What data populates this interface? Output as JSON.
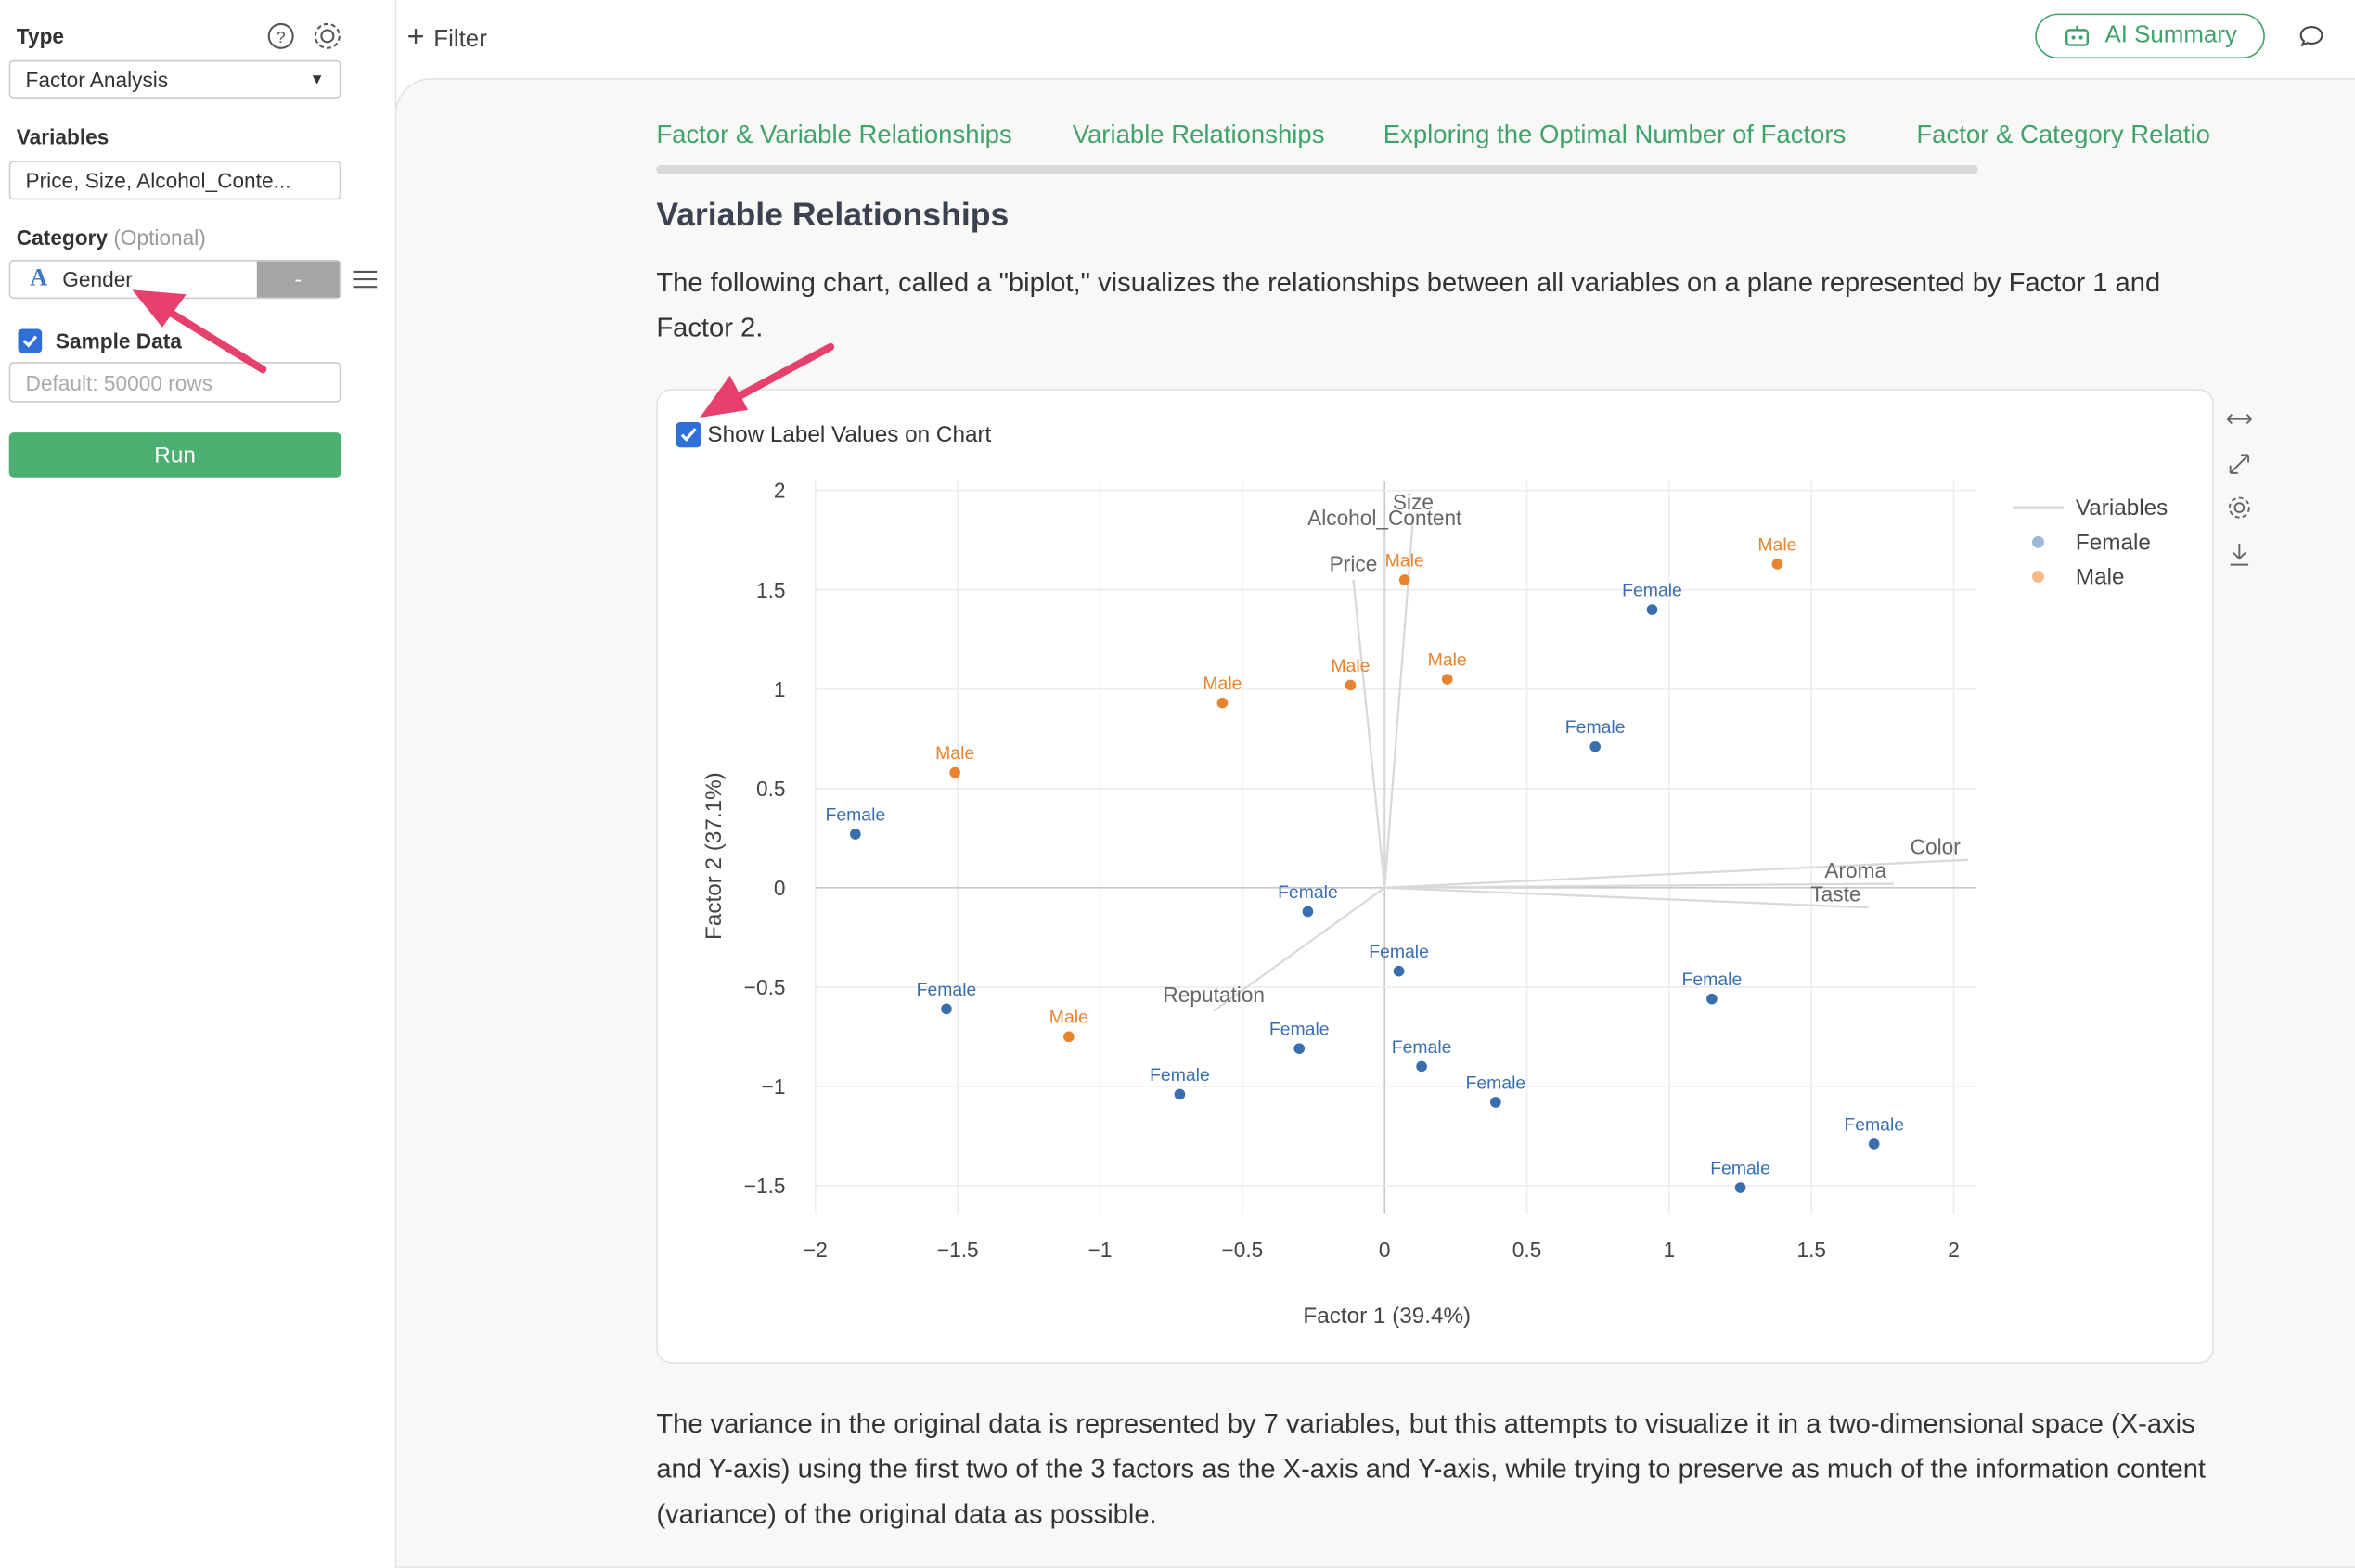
{
  "sidebar": {
    "type_label": "Type",
    "type_value": "Factor Analysis",
    "variables_label": "Variables",
    "variables_value": "Price, Size, Alcohol_Conte...",
    "category_label": "Category",
    "category_optional": "(Optional)",
    "category_value": "Gender",
    "category_button": "-",
    "sample_label": "Sample Data",
    "sample_placeholder": "Default: 50000 rows",
    "run": "Run"
  },
  "toolbar": {
    "filter": "Filter",
    "ai_summary": "AI Summary"
  },
  "tabs": [
    "Factor & Variable Relationships",
    "Variable Relationships",
    "Exploring the Optimal Number of Factors",
    "Factor & Category Relatio"
  ],
  "heading": "Variable Relationships",
  "intro": "The following chart, called a \"biplot,\" visualizes the relationships between all variables on a plane represented by Factor 1 and Factor 2.",
  "show_labels": "Show Label Values on Chart",
  "outro": "The variance in the original data is represented by 7 variables, but this attempts to visualize it in a two-dimensional space (X-axis and Y-axis) using the first two of the 3 factors as the X-axis and Y-axis, while trying to preserve as much of the information content (variance) of the original data as possible.",
  "chart_data": {
    "type": "scatter",
    "xlabel": "Factor 1 (39.4%)",
    "ylabel": "Factor 2 (37.1%)",
    "xlim": [
      -2,
      2.08
    ],
    "ylim": [
      -1.64,
      2.05
    ],
    "xticks": [
      {
        "value": -2,
        "label": "−2"
      },
      {
        "value": -1.5,
        "label": "−1.5"
      },
      {
        "value": -1,
        "label": "−1"
      },
      {
        "value": -0.5,
        "label": "−0.5"
      },
      0,
      0.5,
      1,
      1.5,
      2
    ],
    "yticks": [
      {
        "value": -1.5,
        "label": "−1.5"
      },
      {
        "value": -1,
        "label": "−1"
      },
      {
        "value": -0.5,
        "label": "−0.5"
      },
      0,
      0.5,
      1,
      1.5,
      2
    ],
    "grid": true,
    "legend": "top-right",
    "variables": {
      "name": "Variables",
      "color": "#d9d9d9",
      "labels": [
        "Size",
        "Alcohol_Content",
        "Price",
        "Color",
        "Aroma",
        "Taste",
        "Reputation"
      ],
      "x": [
        0.1,
        0.0,
        -0.11,
        2.05,
        1.79,
        1.7,
        -0.6
      ],
      "values": [
        1.86,
        1.78,
        1.55,
        0.14,
        0.02,
        -0.1,
        -0.62
      ]
    },
    "series": [
      {
        "name": "Female",
        "color": "#3a6faf",
        "legend_color": "#9db8d8",
        "x": [
          -1.86,
          0.94,
          0.74,
          -0.27,
          0.05,
          1.15,
          -1.54,
          -0.3,
          0.13,
          -0.72,
          0.39,
          1.72,
          1.25
        ],
        "values": [
          0.27,
          1.4,
          0.71,
          -0.12,
          -0.42,
          -0.56,
          -0.61,
          -0.81,
          -0.9,
          -1.04,
          -1.08,
          -1.29,
          -1.51
        ]
      },
      {
        "name": "Male",
        "color": "#e8832f",
        "legend_color": "#f5b98a",
        "x": [
          1.38,
          0.07,
          -0.12,
          0.22,
          -0.57,
          -1.51,
          -1.11
        ],
        "values": [
          1.63,
          1.55,
          1.02,
          1.05,
          0.93,
          0.58,
          -0.75
        ]
      }
    ]
  }
}
